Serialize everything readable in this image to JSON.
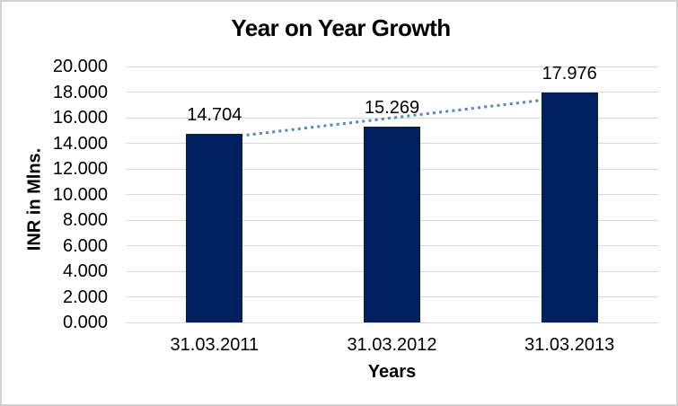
{
  "window": {
    "background_color": "#FFFFFF",
    "border_color": "#D2D2D2"
  },
  "chart_data": {
    "type": "bar",
    "title": "Year on Year Growth",
    "xlabel": "Years",
    "ylabel": "INR in Mlns.",
    "categories": [
      "31.03.2011",
      "31.03.2012",
      "31.03.2013"
    ],
    "values": [
      14.704,
      15.269,
      17.976
    ],
    "data_labels": [
      "14.704",
      "15.269",
      "17.976"
    ],
    "ylim": [
      0,
      20
    ],
    "ytick_step": 2,
    "ytick_labels": [
      "0.000",
      "2.000",
      "4.000",
      "6.000",
      "8.000",
      "10.000",
      "12.000",
      "14.000",
      "16.000",
      "18.000",
      "20.000"
    ],
    "grid": true,
    "legend": "none",
    "bar_color": "#002060",
    "gridline_color": "#D9D9D9",
    "label_color": "#000000",
    "trendline": {
      "type": "linear",
      "style": "dotted",
      "color": "#4E87CE"
    }
  }
}
